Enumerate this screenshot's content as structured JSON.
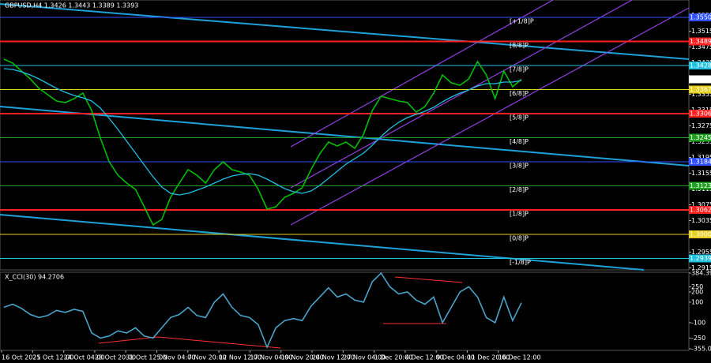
{
  "chart_data": [
    {
      "type": "line",
      "title": "GBPUSD,H4  1.3426 1.3443 1.3389 1.3393",
      "ylim": [
        1.291,
        1.3594
      ],
      "yticks": [
        1.2915,
        1.2955,
        1.2995,
        1.3035,
        1.3075,
        1.3115,
        1.3155,
        1.3195,
        1.3235,
        1.3275,
        1.3315,
        1.3355,
        1.3395,
        1.3435,
        1.3475,
        1.3515,
        1.3555
      ],
      "series": [
        {
          "color": "#00c000",
          "values": [
            1.3444,
            1.3434,
            1.3414,
            1.3394,
            1.337,
            1.3354,
            1.3338,
            1.3334,
            1.3344,
            1.3358,
            1.3314,
            1.3244,
            1.3184,
            1.315,
            1.313,
            1.3114,
            1.307,
            1.3024,
            1.3038,
            1.3094,
            1.313,
            1.3164,
            1.315,
            1.313,
            1.3164,
            1.3184,
            1.3164,
            1.3158,
            1.315,
            1.3114,
            1.3064,
            1.307,
            1.3094,
            1.3104,
            1.3118,
            1.3164,
            1.3204,
            1.3234,
            1.3224,
            1.3234,
            1.3218,
            1.3254,
            1.3314,
            1.335,
            1.3344,
            1.3338,
            1.3334,
            1.331,
            1.3324,
            1.3358,
            1.3404,
            1.3384,
            1.3378,
            1.3394,
            1.3438,
            1.3404,
            1.3344,
            1.3414,
            1.3374,
            1.3393
          ]
        },
        {
          "color": "#20c0e0",
          "values": [
            1.342,
            1.3418,
            1.3412,
            1.3404,
            1.3394,
            1.3382,
            1.337,
            1.336,
            1.3352,
            1.3346,
            1.3338,
            1.332,
            1.3294,
            1.3266,
            1.3236,
            1.3206,
            1.3176,
            1.3146,
            1.312,
            1.3104,
            1.31,
            1.3104,
            1.3112,
            1.312,
            1.313,
            1.314,
            1.3148,
            1.3152,
            1.3154,
            1.315,
            1.314,
            1.3128,
            1.3116,
            1.3108,
            1.3104,
            1.311,
            1.3124,
            1.3142,
            1.316,
            1.3178,
            1.3192,
            1.3206,
            1.3226,
            1.3248,
            1.3268,
            1.3284,
            1.3296,
            1.3304,
            1.3312,
            1.3322,
            1.3336,
            1.3348,
            1.3358,
            1.3366,
            1.3376,
            1.3382,
            1.3382,
            1.3386,
            1.3386,
            1.339
          ]
        }
      ],
      "levels": [
        {
          "value": 1.355,
          "label": "1.3550",
          "tag": "[+1/8]P",
          "color": "#3050ff",
          "line_width": 1
        },
        {
          "value": 1.3489,
          "label": "1.3489",
          "tag": "[8/8]P",
          "color": "#ff2020",
          "line_width": 2
        },
        {
          "value": 1.3428,
          "label": "1.3428",
          "tag": "[7/8]P",
          "color": "#20c0e0",
          "line_width": 1
        },
        {
          "value": 1.3367,
          "label": "1.3367",
          "tag": "[6/8]P",
          "color": "#e8d020",
          "line_width": 1
        },
        {
          "value": 1.3306,
          "label": "1.3306",
          "tag": "[5/8]P",
          "color": "#ff2020",
          "line_width": 2
        },
        {
          "value": 1.3245,
          "label": "1.3245",
          "tag": "[4/8]P",
          "color": "#20a020",
          "line_width": 1
        },
        {
          "value": 1.3184,
          "label": "1.3184",
          "tag": "[3/8]P",
          "color": "#3050ff",
          "line_width": 1
        },
        {
          "value": 1.3123,
          "label": "1.3123",
          "tag": "[2/8]P",
          "color": "#20a020",
          "line_width": 1
        },
        {
          "value": 1.3062,
          "label": "1.3062",
          "tag": "[1/8]P",
          "color": "#ff2020",
          "line_width": 2
        },
        {
          "value": 1.3,
          "label": "1.3000",
          "tag": "[0/8]P",
          "color": "#e8d020",
          "line_width": 1
        },
        {
          "value": 1.2939,
          "label": "1.2939",
          "tag": "[-1/8]P",
          "color": "#20c0e0",
          "line_width": 1
        }
      ],
      "current_price": 1.3393
    },
    {
      "type": "line",
      "title": "X_CCI(30) 94.2706",
      "ylim": [
        -355.0351,
        384.3971
      ],
      "yticks": [
        384.3971,
        250,
        200,
        100,
        -100,
        -250,
        -355.0351
      ],
      "series": [
        {
          "color": "#4aa3c8",
          "values": [
            50,
            80,
            40,
            -20,
            -50,
            -30,
            20,
            0,
            30,
            10,
            -200,
            -250,
            -230,
            -180,
            -200,
            -150,
            -230,
            -250,
            -150,
            -50,
            -20,
            50,
            -30,
            -50,
            100,
            180,
            50,
            -30,
            -50,
            -120,
            -340,
            -150,
            -80,
            -60,
            -80,
            60,
            150,
            240,
            150,
            180,
            120,
            100,
            300,
            384,
            250,
            180,
            200,
            120,
            80,
            150,
            -100,
            50,
            200,
            250,
            150,
            -50,
            -100,
            150,
            -80,
            94.2706
          ]
        }
      ]
    }
  ],
  "time_axis": [
    "16 Oct 2025",
    "21 Oct 12:00",
    "24 Oct 04:00",
    "28 Oct 20:00",
    "31 Oct 12:00",
    "5 Nov 04:00",
    "7 Nov 20:00",
    "12 Nov 12:00",
    "17 Nov 04:00",
    "19 Nov 20:00",
    "24 Nov 12:00",
    "27 Nov 04:00",
    "1 Dec 20:00",
    "4 Dec 12:00",
    "9 Dec 04:00",
    "11 Dec 20:00",
    "16 Dec 12:00"
  ]
}
